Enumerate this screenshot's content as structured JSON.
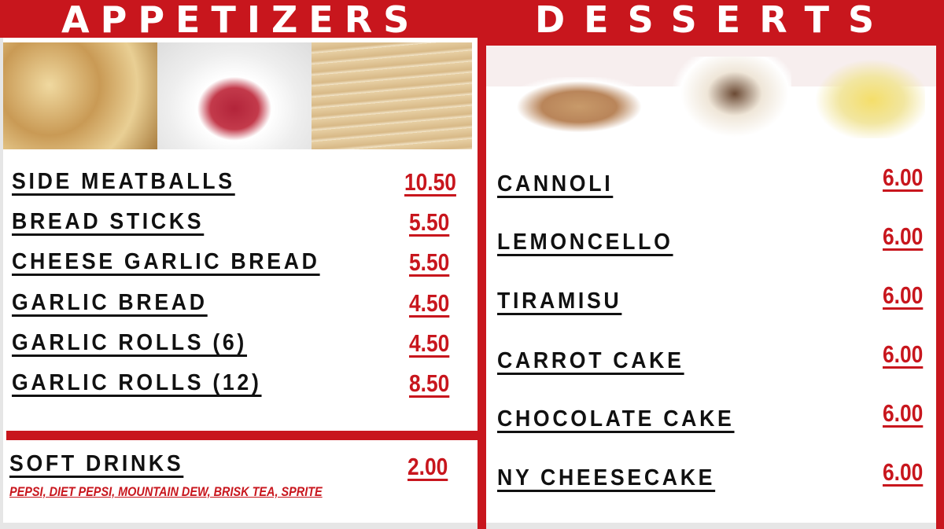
{
  "appetizers": {
    "title": "APPETIZERS",
    "items": [
      {
        "name": "SIDE MEATBALLS",
        "price": "10.50"
      },
      {
        "name": "BREAD STICKS",
        "price": "5.50"
      },
      {
        "name": "CHEESE GARLIC BREAD",
        "price": "5.50"
      },
      {
        "name": "GARLIC BREAD",
        "price": "4.50"
      },
      {
        "name": "GARLIC ROLLS (6)",
        "price": "4.50"
      },
      {
        "name": "GARLIC ROLLS (12)",
        "price": "8.50"
      }
    ]
  },
  "drinks": {
    "name": "SOFT DRINKS",
    "price": "2.00",
    "options": "PEPSI, DIET PEPSI, MOUNTAIN DEW, BRISK TEA, SPRITE"
  },
  "desserts": {
    "title": "DESSERTS",
    "items": [
      {
        "name": "CANNOLI",
        "price": "6.00"
      },
      {
        "name": "LEMONCELLO",
        "price": "6.00"
      },
      {
        "name": "TIRAMISU",
        "price": "6.00"
      },
      {
        "name": "CARROT CAKE",
        "price": "6.00"
      },
      {
        "name": "CHOCOLATE CAKE",
        "price": "6.00"
      },
      {
        "name": "NY CHEESECAKE",
        "price": "6.00"
      }
    ]
  },
  "colors": {
    "accent": "#c8161d",
    "text": "#111111"
  }
}
